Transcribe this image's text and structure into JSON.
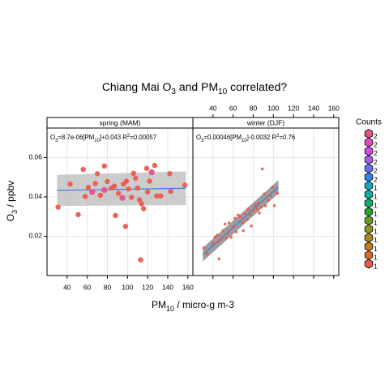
{
  "chart_data": {
    "type": "scatter",
    "title_parts": [
      "Chiang Mai O",
      "3",
      " and PM",
      "10",
      " correlated?"
    ],
    "xlabel_parts": [
      "PM",
      "10",
      " / micro-g m-3"
    ],
    "ylabel_parts": [
      "O",
      "3",
      " / ppbv"
    ],
    "xlim": [
      20,
      165
    ],
    "ylim": [
      0.0,
      0.075
    ],
    "x_ticks_bottom": [
      40,
      60,
      80,
      100,
      120,
      140,
      160
    ],
    "x_ticks_top": [
      40,
      60,
      80,
      100,
      120,
      140,
      160
    ],
    "y_ticks": [
      0.02,
      0.04,
      0.06
    ],
    "y_tick_labels": [
      "0.02",
      "0.04",
      "0.06"
    ],
    "grid": true,
    "legend_position": "right",
    "legend": {
      "title": "Counts",
      "labels": [
        "2",
        "2",
        "2",
        "2",
        "2",
        "2",
        "1",
        "1",
        "1",
        "1",
        "1",
        "1",
        "1",
        "1",
        "1",
        "1"
      ],
      "colors": [
        "#E6508E",
        "#E048C8",
        "#D14BE5",
        "#A45EEA",
        "#6C6FEA",
        "#2F85E1",
        "#14A4BE",
        "#13AE9A",
        "#16AD71",
        "#2CA02C",
        "#6B9E1F",
        "#909619",
        "#A88A15",
        "#C47C18",
        "#DB6A2A",
        "#EB5A4B"
      ]
    },
    "panels": [
      {
        "strip": "spring (MAM)",
        "annotation_parts": [
          "O",
          "3",
          "=8.7e-06[PM",
          "10",
          "]+0.043 R",
          "2",
          "=0.00057"
        ],
        "fit_color": "#3D7BE0",
        "band_color": "#BEBEBE",
        "fit": {
          "x": [
            30,
            158
          ],
          "y": [
            0.0433,
            0.0444
          ],
          "lower": [
            0.0354,
            0.0358
          ],
          "upper": [
            0.0512,
            0.053
          ]
        },
        "points": [
          {
            "x": 31,
            "y": 0.0348,
            "count": 1
          },
          {
            "x": 43,
            "y": 0.0465,
            "count": 1
          },
          {
            "x": 51,
            "y": 0.031,
            "count": 1
          },
          {
            "x": 56,
            "y": 0.054,
            "count": 1
          },
          {
            "x": 58,
            "y": 0.0402,
            "count": 1
          },
          {
            "x": 61,
            "y": 0.0448,
            "count": 1
          },
          {
            "x": 65,
            "y": 0.0425,
            "count": 2
          },
          {
            "x": 68,
            "y": 0.0468,
            "count": 1
          },
          {
            "x": 70,
            "y": 0.0518,
            "count": 1
          },
          {
            "x": 73,
            "y": 0.0408,
            "count": 1
          },
          {
            "x": 77,
            "y": 0.0557,
            "count": 1
          },
          {
            "x": 77,
            "y": 0.0435,
            "count": 2
          },
          {
            "x": 80,
            "y": 0.0478,
            "count": 1
          },
          {
            "x": 84,
            "y": 0.0445,
            "count": 1
          },
          {
            "x": 87,
            "y": 0.0455,
            "count": 1
          },
          {
            "x": 88,
            "y": 0.0305,
            "count": 1
          },
          {
            "x": 91,
            "y": 0.0418,
            "count": 1
          },
          {
            "x": 95,
            "y": 0.0395,
            "count": 2
          },
          {
            "x": 96,
            "y": 0.0465,
            "count": 1
          },
          {
            "x": 98,
            "y": 0.025,
            "count": 1
          },
          {
            "x": 99,
            "y": 0.048,
            "count": 1
          },
          {
            "x": 101,
            "y": 0.044,
            "count": 1
          },
          {
            "x": 104,
            "y": 0.0398,
            "count": 1
          },
          {
            "x": 106,
            "y": 0.052,
            "count": 1
          },
          {
            "x": 108,
            "y": 0.0495,
            "count": 1
          },
          {
            "x": 110,
            "y": 0.0445,
            "count": 1
          },
          {
            "x": 112,
            "y": 0.0385,
            "count": 1
          },
          {
            "x": 113,
            "y": 0.008,
            "count": 1
          },
          {
            "x": 114,
            "y": 0.0365,
            "count": 1
          },
          {
            "x": 116,
            "y": 0.034,
            "count": 1
          },
          {
            "x": 119,
            "y": 0.0545,
            "count": 1
          },
          {
            "x": 120,
            "y": 0.0425,
            "count": 1
          },
          {
            "x": 122,
            "y": 0.048,
            "count": 1
          },
          {
            "x": 124,
            "y": 0.0525,
            "count": 2
          },
          {
            "x": 127,
            "y": 0.056,
            "count": 1
          },
          {
            "x": 129,
            "y": 0.0405,
            "count": 1
          },
          {
            "x": 133,
            "y": 0.0405,
            "count": 1
          },
          {
            "x": 142,
            "y": 0.0518,
            "count": 1
          },
          {
            "x": 143,
            "y": 0.0428,
            "count": 1
          },
          {
            "x": 157,
            "y": 0.046,
            "count": 1
          }
        ]
      },
      {
        "strip": "winter (DJF)",
        "annotation_parts": [
          "O",
          "3",
          "=0.00046[PM",
          "10",
          "]-0.0032 R",
          "2",
          "=0.76"
        ],
        "fit_color": "#3D7BE0",
        "band_color": "#8C8C8C",
        "fit": {
          "x": [
            30,
            105
          ],
          "y": [
            0.0106,
            0.0451
          ],
          "lower": [
            0.0072,
            0.0418
          ],
          "upper": [
            0.0142,
            0.0485
          ]
        },
        "points": [
          {
            "x": 31,
            "y": 0.014,
            "count": 1
          },
          {
            "x": 34,
            "y": 0.011,
            "count": 1
          },
          {
            "x": 40,
            "y": 0.0165,
            "count": 1
          },
          {
            "x": 42,
            "y": 0.0195,
            "count": 1
          },
          {
            "x": 44,
            "y": 0.0205,
            "count": 1
          },
          {
            "x": 45,
            "y": 0.017,
            "count": 1
          },
          {
            "x": 46,
            "y": 0.0085,
            "count": 1
          },
          {
            "x": 48,
            "y": 0.0185,
            "count": 1
          },
          {
            "x": 50,
            "y": 0.0228,
            "count": 1
          },
          {
            "x": 52,
            "y": 0.0262,
            "count": 1
          },
          {
            "x": 53,
            "y": 0.0192,
            "count": 1
          },
          {
            "x": 55,
            "y": 0.0215,
            "count": 1
          },
          {
            "x": 56,
            "y": 0.0268,
            "count": 1
          },
          {
            "x": 58,
            "y": 0.0195,
            "count": 1
          },
          {
            "x": 60,
            "y": 0.0248,
            "count": 1
          },
          {
            "x": 62,
            "y": 0.0292,
            "count": 1
          },
          {
            "x": 63,
            "y": 0.0222,
            "count": 1
          },
          {
            "x": 65,
            "y": 0.0308,
            "count": 1
          },
          {
            "x": 67,
            "y": 0.0298,
            "count": 1
          },
          {
            "x": 69,
            "y": 0.0268,
            "count": 1
          },
          {
            "x": 70,
            "y": 0.0228,
            "count": 1
          },
          {
            "x": 72,
            "y": 0.0315,
            "count": 1
          },
          {
            "x": 74,
            "y": 0.0285,
            "count": 1
          },
          {
            "x": 75,
            "y": 0.0338,
            "count": 1
          },
          {
            "x": 77,
            "y": 0.0308,
            "count": 1
          },
          {
            "x": 78,
            "y": 0.0252,
            "count": 1
          },
          {
            "x": 80,
            "y": 0.0328,
            "count": 1
          },
          {
            "x": 82,
            "y": 0.0358,
            "count": 1
          },
          {
            "x": 84,
            "y": 0.0338,
            "count": 1
          },
          {
            "x": 85,
            "y": 0.0368,
            "count": 1
          },
          {
            "x": 86,
            "y": 0.0318,
            "count": 1
          },
          {
            "x": 88,
            "y": 0.0348,
            "count": 1
          },
          {
            "x": 89,
            "y": 0.0542,
            "count": 1
          },
          {
            "x": 91,
            "y": 0.0415,
            "count": 1
          },
          {
            "x": 92,
            "y": 0.0355,
            "count": 1
          },
          {
            "x": 95,
            "y": 0.0382,
            "count": 1
          },
          {
            "x": 97,
            "y": 0.0408,
            "count": 1
          },
          {
            "x": 99,
            "y": 0.0448,
            "count": 1
          },
          {
            "x": 101,
            "y": 0.0355,
            "count": 1
          },
          {
            "x": 104,
            "y": 0.0418,
            "count": 1
          }
        ]
      }
    ]
  }
}
